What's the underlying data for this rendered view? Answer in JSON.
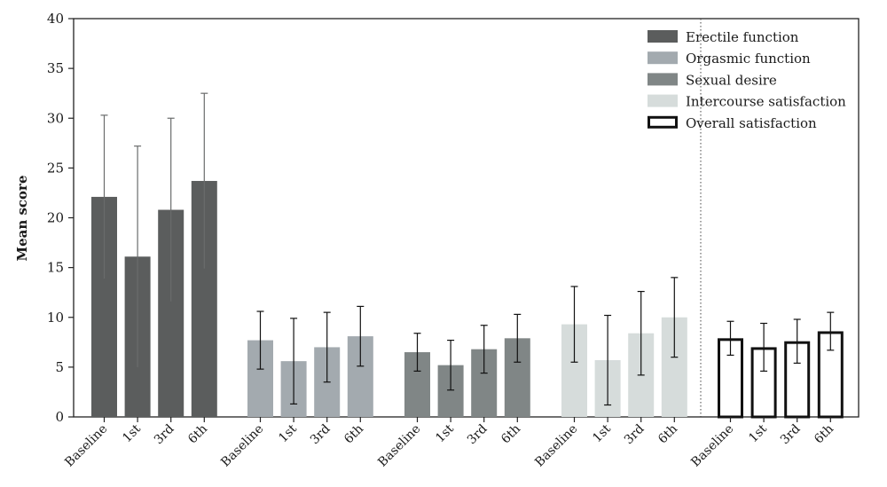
{
  "chart_data": {
    "type": "bar",
    "title": "",
    "ylabel": "Mean score",
    "xlabel": "",
    "ylim": [
      0,
      40
    ],
    "yticks": [
      0,
      5,
      10,
      15,
      20,
      25,
      30,
      35,
      40
    ],
    "categories": [
      "Baseline",
      "1st",
      "3rd",
      "6th"
    ],
    "legend_position": "top-right",
    "grid": false,
    "series": [
      {
        "name": "Erectile function",
        "color": "#5b5d5d",
        "filled": true,
        "values": [
          22.1,
          16.1,
          20.8,
          23.7
        ],
        "errors": [
          8.2,
          11.1,
          9.2,
          8.8
        ]
      },
      {
        "name": "Orgasmic function",
        "color": "#a3aaaf",
        "filled": true,
        "values": [
          7.7,
          5.6,
          7.0,
          8.1
        ],
        "errors": [
          2.9,
          4.3,
          3.5,
          3.0
        ]
      },
      {
        "name": "Sexual desire",
        "color": "#808686",
        "filled": true,
        "values": [
          6.5,
          5.2,
          6.8,
          7.9
        ],
        "errors": [
          1.9,
          2.5,
          2.4,
          2.4
        ]
      },
      {
        "name": "Intercourse satisfaction",
        "color": "#d6dcdb",
        "filled": true,
        "values": [
          9.3,
          5.7,
          8.4,
          10.0
        ],
        "errors": [
          3.8,
          4.5,
          4.2,
          4.0
        ]
      },
      {
        "name": "Overall satisfaction",
        "color": "#111111",
        "filled": false,
        "values": [
          7.9,
          7.0,
          7.6,
          8.6
        ],
        "errors": [
          1.7,
          2.4,
          2.2,
          1.9
        ]
      }
    ]
  }
}
